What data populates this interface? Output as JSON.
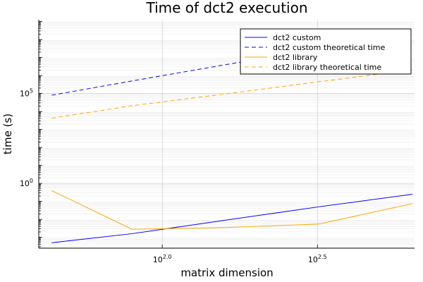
{
  "chart_data": {
    "type": "line",
    "title": "Time of dct2 execution",
    "xlabel": "matrix dimension",
    "ylabel": "time (s)",
    "x_scale": "log10",
    "y_scale": "log10",
    "x_ticks": [
      {
        "value": 100,
        "label_base": "10",
        "label_exp": "2.0"
      },
      {
        "value": 316.2,
        "label_base": "10",
        "label_exp": "2.5"
      }
    ],
    "y_ticks": [
      {
        "value": 1,
        "label_base": "10",
        "label_exp": "0"
      },
      {
        "value": 100000,
        "label_base": "10",
        "label_exp": "5"
      }
    ],
    "xlim": [
      40,
      650
    ],
    "ylim": [
      0.00025,
      1260000000
    ],
    "grid": true,
    "legend_position": "top-right",
    "x": [
      44,
      80,
      160,
      320,
      640
    ],
    "series": [
      {
        "name": "dct2 custom",
        "color": "#0000ff",
        "dash": "solid",
        "values": [
          0.0005,
          0.0016,
          0.009,
          0.05,
          0.25
        ]
      },
      {
        "name": "dct2 custom theoretical time",
        "color": "#0000ff",
        "dash": "dashed",
        "values": [
          80000,
          500000,
          4000000,
          30000000,
          250000000
        ]
      },
      {
        "name": "dct2 library",
        "color": "#ffa500",
        "dash": "solid",
        "values": [
          0.4,
          0.0028,
          0.0035,
          0.0055,
          0.075
        ]
      },
      {
        "name": "dct2 library theoretical time",
        "color": "#ffa500",
        "dash": "dashed",
        "values": [
          4200,
          21000,
          95000,
          450000,
          2100000
        ]
      }
    ]
  }
}
